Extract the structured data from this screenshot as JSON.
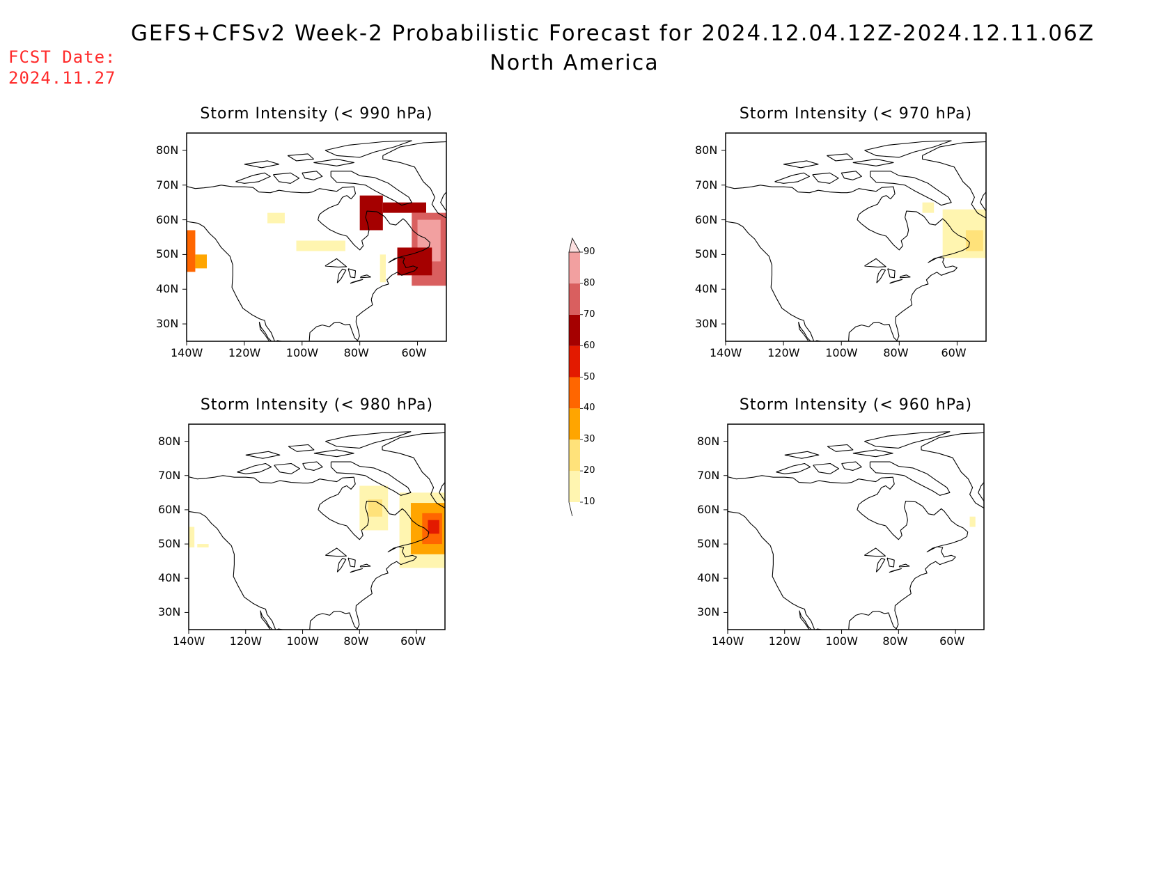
{
  "title": "GEFS+CFSv2 Week-2 Probabilistic Forecast for 2024.12.04.12Z-2024.12.11.06Z",
  "subtitle": "North America",
  "fcst_label": "FCST Date:",
  "fcst_date": "2024.11.27",
  "colorbar": {
    "levels": [
      10,
      20,
      30,
      40,
      50,
      60,
      70,
      80,
      90
    ],
    "colors": [
      "#fff5b0",
      "#ffe27a",
      "#ffa500",
      "#ff6600",
      "#e31a00",
      "#a50000",
      "#d95f5f",
      "#f2a0a0",
      "#fde0e0"
    ]
  },
  "lat_ticks": [
    "80N",
    "70N",
    "60N",
    "50N",
    "40N",
    "30N"
  ],
  "lon_ticks": [
    "140W",
    "120W",
    "100W",
    "80W",
    "60W"
  ],
  "chart_data": [
    {
      "type": "heatmap",
      "title": "Storm Intensity (< 990 hPa)",
      "xlim": [
        -140,
        -50
      ],
      "ylim": [
        25,
        85
      ],
      "regions": [
        {
          "lon": [
            -140,
            -137
          ],
          "lat": [
            45,
            57
          ],
          "level": 40
        },
        {
          "lon": [
            -137,
            -133
          ],
          "lat": [
            46,
            50
          ],
          "level": 30
        },
        {
          "lon": [
            -112,
            -106
          ],
          "lat": [
            59,
            62
          ],
          "level": 10
        },
        {
          "lon": [
            -102,
            -85
          ],
          "lat": [
            51,
            54
          ],
          "level": 10
        },
        {
          "lon": [
            -80,
            -72
          ],
          "lat": [
            57,
            67
          ],
          "level": 60
        },
        {
          "lon": [
            -72,
            -57
          ],
          "lat": [
            62,
            65
          ],
          "level": 60
        },
        {
          "lon": [
            -62,
            -50
          ],
          "lat": [
            41,
            62
          ],
          "level": 70
        },
        {
          "lon": [
            -60,
            -52
          ],
          "lat": [
            48,
            60
          ],
          "level": 80
        },
        {
          "lon": [
            -67,
            -55
          ],
          "lat": [
            44,
            52
          ],
          "level": 60
        },
        {
          "lon": [
            -73,
            -71
          ],
          "lat": [
            42,
            50
          ],
          "level": 10
        }
      ]
    },
    {
      "type": "heatmap",
      "title": "Storm Intensity (< 970 hPa)",
      "xlim": [
        -140,
        -50
      ],
      "ylim": [
        25,
        85
      ],
      "regions": [
        {
          "lon": [
            -72,
            -68
          ],
          "lat": [
            62,
            65
          ],
          "level": 10
        },
        {
          "lon": [
            -65,
            -50
          ],
          "lat": [
            49,
            63
          ],
          "level": 10
        },
        {
          "lon": [
            -57,
            -51
          ],
          "lat": [
            51,
            57
          ],
          "level": 20
        }
      ]
    },
    {
      "type": "heatmap",
      "title": "Storm Intensity (< 980 hPa)",
      "xlim": [
        -140,
        -50
      ],
      "ylim": [
        25,
        85
      ],
      "regions": [
        {
          "lon": [
            -140,
            -138
          ],
          "lat": [
            49,
            55
          ],
          "level": 10
        },
        {
          "lon": [
            -137,
            -133
          ],
          "lat": [
            49,
            50
          ],
          "level": 10
        },
        {
          "lon": [
            -80,
            -70
          ],
          "lat": [
            54,
            67
          ],
          "level": 10
        },
        {
          "lon": [
            -77,
            -72
          ],
          "lat": [
            58,
            63
          ],
          "level": 20
        },
        {
          "lon": [
            -66,
            -50
          ],
          "lat": [
            43,
            65
          ],
          "level": 10
        },
        {
          "lon": [
            -62,
            -50
          ],
          "lat": [
            47,
            62
          ],
          "level": 30
        },
        {
          "lon": [
            -58,
            -51
          ],
          "lat": [
            50,
            59
          ],
          "level": 40
        },
        {
          "lon": [
            -56,
            -52
          ],
          "lat": [
            53,
            57
          ],
          "level": 50
        }
      ]
    },
    {
      "type": "heatmap",
      "title": "Storm Intensity (< 960 hPa)",
      "xlim": [
        -140,
        -50
      ],
      "ylim": [
        25,
        85
      ],
      "regions": [
        {
          "lon": [
            -55,
            -53
          ],
          "lat": [
            55,
            58
          ],
          "level": 10
        }
      ]
    }
  ]
}
